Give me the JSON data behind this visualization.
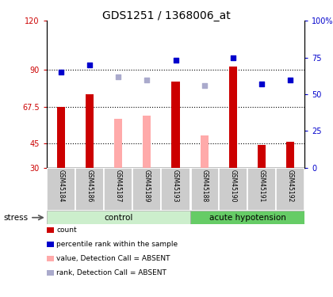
{
  "title": "GDS1251 / 1368006_at",
  "samples": [
    "GSM45184",
    "GSM45186",
    "GSM45187",
    "GSM45189",
    "GSM45193",
    "GSM45188",
    "GSM45190",
    "GSM45191",
    "GSM45192"
  ],
  "red_bars": [
    67.5,
    75.0,
    null,
    null,
    83.0,
    null,
    92.0,
    44.0,
    46.0
  ],
  "pink_bars": [
    null,
    null,
    60.0,
    62.0,
    null,
    50.0,
    null,
    null,
    null
  ],
  "blue_squares_right": [
    65.0,
    70.0,
    null,
    null,
    73.0,
    null,
    75.0,
    57.0,
    60.0
  ],
  "lavender_squares_right": [
    null,
    null,
    62.0,
    60.0,
    null,
    56.0,
    null,
    null,
    null
  ],
  "ylim_left": [
    30,
    120
  ],
  "ylim_right": [
    0,
    100
  ],
  "yticks_left": [
    30,
    45,
    67.5,
    90,
    120
  ],
  "ytick_labels_left": [
    "30",
    "45",
    "67.5",
    "90",
    "120"
  ],
  "yticks_right": [
    0,
    25,
    50,
    75,
    100
  ],
  "ytick_labels_right": [
    "0",
    "25",
    "50",
    "75",
    "100%"
  ],
  "hlines": [
    45,
    67.5,
    90
  ],
  "stress_label": "stress ▶",
  "group_control_label": "control",
  "group_acute_label": "acute hypotension",
  "legend_items": [
    {
      "label": "count",
      "color": "#cc0000"
    },
    {
      "label": "percentile rank within the sample",
      "color": "#0000cc"
    },
    {
      "label": "value, Detection Call = ABSENT",
      "color": "#ffaaaa"
    },
    {
      "label": "rank, Detection Call = ABSENT",
      "color": "#aaaacc"
    }
  ],
  "bar_color_red": "#cc0000",
  "bar_color_pink": "#ffaaaa",
  "square_color_blue": "#0000cc",
  "square_color_lavender": "#aaaacc",
  "bg_group_control_light": "#cceecc",
  "bg_group_control_dark": "#88cc88",
  "bg_group_acute": "#66cc66",
  "title_fontsize": 10,
  "tick_fontsize": 7,
  "label_fontsize": 7
}
